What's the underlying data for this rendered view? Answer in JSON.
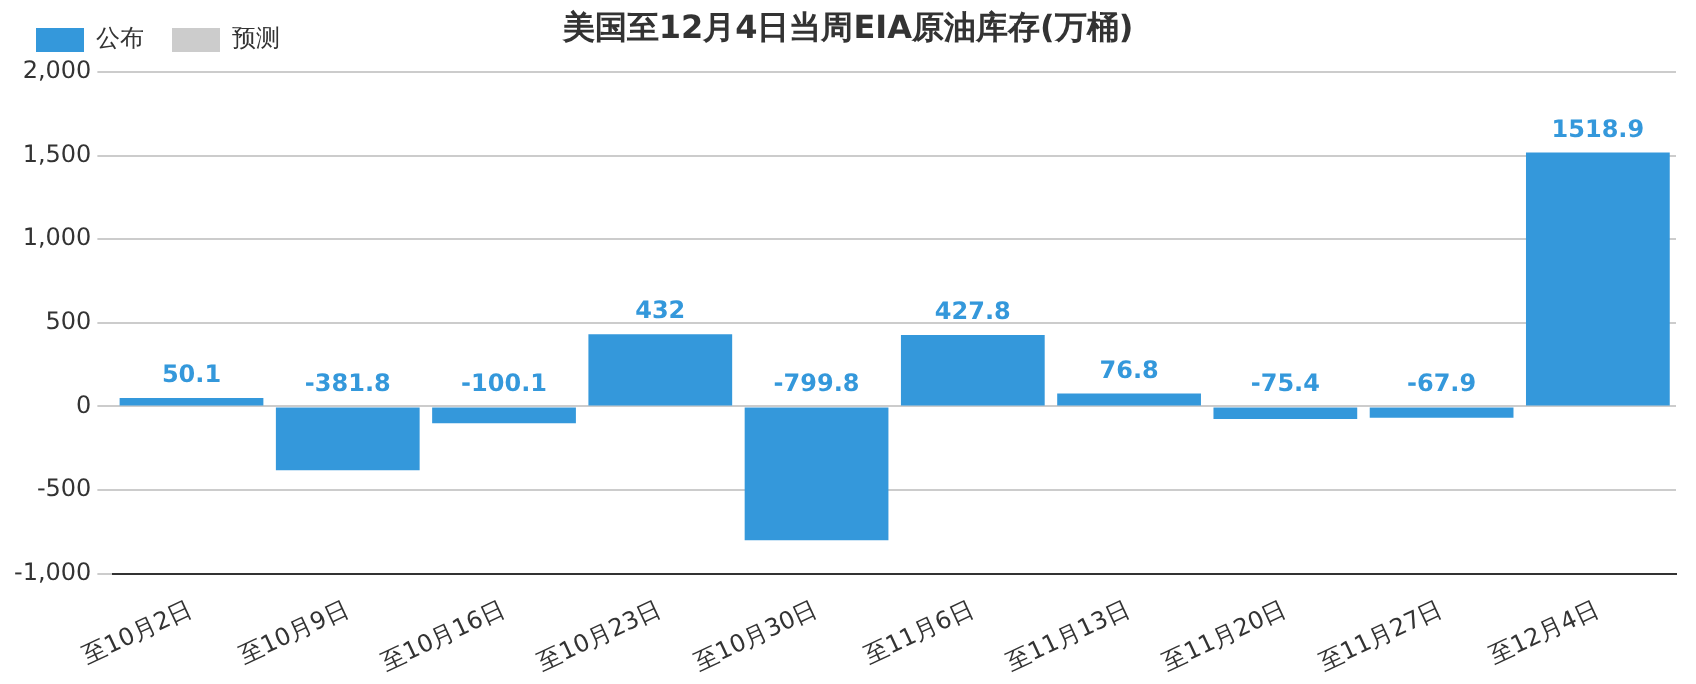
{
  "chart_data": {
    "type": "bar",
    "title": "美国至12月4日当周EIA原油库存(万桶)",
    "categories": [
      "至10月2日",
      "至10月9日",
      "至10月16日",
      "至10月23日",
      "至10月30日",
      "至11月6日",
      "至11月13日",
      "至11月20日",
      "至11月27日",
      "至12月4日"
    ],
    "series": [
      {
        "name": "公布",
        "color": "#3498db",
        "values": [
          50.1,
          -381.8,
          -100.1,
          432,
          -799.8,
          427.8,
          76.8,
          -75.4,
          -67.9,
          1518.9
        ]
      },
      {
        "name": "预测",
        "color": "#cccccc",
        "values": [
          null,
          null,
          null,
          null,
          null,
          null,
          null,
          null,
          null,
          null
        ]
      }
    ],
    "ylim": [
      -1000,
      2000
    ],
    "yticks": [
      {
        "value": -1000,
        "label": "-1,000"
      },
      -500,
      0,
      500,
      {
        "value": 1000,
        "label": "1,000"
      },
      {
        "value": 1500,
        "label": "1,500"
      },
      {
        "value": 2000,
        "label": "2,000"
      }
    ],
    "grid": "y",
    "legend": "top left",
    "data_labels": true
  }
}
